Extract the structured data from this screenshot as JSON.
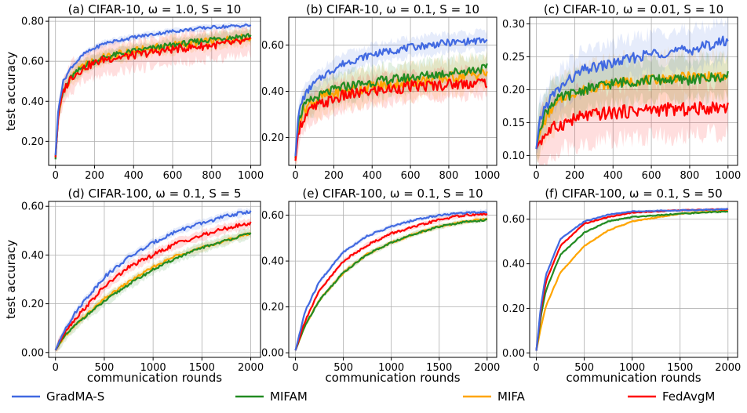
{
  "legend": [
    {
      "name": "GradMA-S",
      "color": "#4169e1"
    },
    {
      "name": "MIFAM",
      "color": "#228b22"
    },
    {
      "name": "MIFA",
      "color": "#ffa500"
    },
    {
      "name": "FedAvgM",
      "color": "#ff0000"
    }
  ],
  "chart_data": [
    {
      "type": "line",
      "title": "(a) CIFAR-10, ω = 1.0, S = 10",
      "ylabel": "test accuracy",
      "xlabel": "",
      "xlim": [
        -35,
        1050
      ],
      "ylim": [
        0.08,
        0.82
      ],
      "xticks": [
        0,
        200,
        400,
        600,
        800,
        1000
      ],
      "xtick_labels": [
        "0",
        "200",
        "400",
        "600",
        "800",
        "1000"
      ],
      "yticks": [
        0.2,
        0.4,
        0.6,
        0.8
      ],
      "ytick_labels": [
        "0.20",
        "0.40",
        "0.60",
        "0.80"
      ],
      "grid": true,
      "shaded_variance": true,
      "series": [
        {
          "name": "GradMA-S",
          "x": [
            0,
            15,
            40,
            80,
            150,
            250,
            400,
            600,
            800,
            1000
          ],
          "y": [
            0.13,
            0.37,
            0.5,
            0.57,
            0.64,
            0.69,
            0.72,
            0.75,
            0.77,
            0.78
          ],
          "band": 0.015,
          "noise": 0.008
        },
        {
          "name": "MIFAM",
          "x": [
            0,
            15,
            40,
            80,
            150,
            250,
            400,
            600,
            800,
            1000
          ],
          "y": [
            0.11,
            0.34,
            0.45,
            0.52,
            0.58,
            0.62,
            0.65,
            0.68,
            0.71,
            0.73
          ],
          "band": 0.03,
          "noise": 0.015
        },
        {
          "name": "MIFA",
          "x": [
            0,
            15,
            40,
            80,
            150,
            250,
            400,
            600,
            800,
            1000
          ],
          "y": [
            0.12,
            0.34,
            0.45,
            0.52,
            0.58,
            0.62,
            0.65,
            0.68,
            0.7,
            0.72
          ],
          "band": 0.04,
          "noise": 0.02
        },
        {
          "name": "FedAvgM",
          "x": [
            0,
            15,
            40,
            80,
            150,
            250,
            400,
            600,
            800,
            1000
          ],
          "y": [
            0.12,
            0.33,
            0.45,
            0.52,
            0.57,
            0.61,
            0.63,
            0.66,
            0.68,
            0.7
          ],
          "band": 0.07,
          "noise": 0.02
        }
      ]
    },
    {
      "type": "line",
      "title": "(b) CIFAR-10, ω = 0.1, S = 10",
      "ylabel": "",
      "xlabel": "",
      "xlim": [
        -35,
        1050
      ],
      "ylim": [
        0.08,
        0.72
      ],
      "xticks": [
        0,
        200,
        400,
        600,
        800,
        1000
      ],
      "xtick_labels": [
        "0",
        "200",
        "400",
        "600",
        "800",
        "1000"
      ],
      "yticks": [
        0.2,
        0.4,
        0.6
      ],
      "ytick_labels": [
        "0.20",
        "0.40",
        "0.60"
      ],
      "grid": true,
      "shaded_variance": true,
      "series": [
        {
          "name": "GradMA-S",
          "x": [
            0,
            15,
            40,
            80,
            150,
            250,
            400,
            600,
            800,
            1000
          ],
          "y": [
            0.12,
            0.3,
            0.37,
            0.42,
            0.47,
            0.52,
            0.56,
            0.59,
            0.61,
            0.62
          ],
          "band": 0.04,
          "noise": 0.015
        },
        {
          "name": "MIFAM",
          "x": [
            0,
            15,
            40,
            80,
            150,
            250,
            400,
            600,
            800,
            1000
          ],
          "y": [
            0.11,
            0.27,
            0.33,
            0.36,
            0.39,
            0.42,
            0.44,
            0.46,
            0.48,
            0.5
          ],
          "band": 0.06,
          "noise": 0.02
        },
        {
          "name": "MIFA",
          "x": [
            0,
            15,
            40,
            80,
            150,
            250,
            400,
            600,
            800,
            1000
          ],
          "y": [
            0.11,
            0.26,
            0.32,
            0.35,
            0.38,
            0.4,
            0.42,
            0.44,
            0.46,
            0.48
          ],
          "band": 0.07,
          "noise": 0.025
        },
        {
          "name": "FedAvgM",
          "x": [
            0,
            15,
            40,
            80,
            150,
            250,
            400,
            600,
            800,
            1000
          ],
          "y": [
            0.1,
            0.23,
            0.28,
            0.32,
            0.35,
            0.38,
            0.4,
            0.42,
            0.43,
            0.44
          ],
          "band": 0.06,
          "noise": 0.025
        }
      ]
    },
    {
      "type": "line",
      "title": "(c) CIFAR-10, ω = 0.01, S = 10",
      "ylabel": "",
      "xlabel": "",
      "xlim": [
        -35,
        1050
      ],
      "ylim": [
        0.085,
        0.31
      ],
      "xticks": [
        0,
        200,
        400,
        600,
        800,
        1000
      ],
      "xtick_labels": [
        "0",
        "200",
        "400",
        "600",
        "800",
        "1000"
      ],
      "yticks": [
        0.1,
        0.15,
        0.2,
        0.25,
        0.3
      ],
      "ytick_labels": [
        "0.10",
        "0.15",
        "0.20",
        "0.25",
        "0.30"
      ],
      "grid": true,
      "shaded_variance": true,
      "series": [
        {
          "name": "GradMA-S",
          "x": [
            0,
            15,
            40,
            80,
            150,
            250,
            400,
            600,
            800,
            1000
          ],
          "y": [
            0.11,
            0.15,
            0.17,
            0.19,
            0.21,
            0.23,
            0.24,
            0.255,
            0.26,
            0.275
          ],
          "band": 0.03,
          "noise": 0.008
        },
        {
          "name": "MIFAM",
          "x": [
            0,
            15,
            40,
            80,
            150,
            250,
            400,
            600,
            800,
            1000
          ],
          "y": [
            0.11,
            0.14,
            0.16,
            0.18,
            0.19,
            0.2,
            0.21,
            0.215,
            0.215,
            0.22
          ],
          "band": 0.03,
          "noise": 0.008
        },
        {
          "name": "MIFA",
          "x": [
            0,
            15,
            40,
            80,
            150,
            250,
            400,
            600,
            800,
            1000
          ],
          "y": [
            0.11,
            0.13,
            0.15,
            0.17,
            0.19,
            0.2,
            0.21,
            0.215,
            0.22,
            0.22
          ],
          "band": 0.035,
          "noise": 0.007
        },
        {
          "name": "FedAvgM",
          "x": [
            0,
            15,
            40,
            80,
            150,
            250,
            400,
            600,
            800,
            1000
          ],
          "y": [
            0.11,
            0.12,
            0.13,
            0.14,
            0.15,
            0.16,
            0.165,
            0.17,
            0.17,
            0.175
          ],
          "band": 0.04,
          "noise": 0.01
        }
      ]
    },
    {
      "type": "line",
      "title": "(d) CIFAR-100, ω = 0.1, S = 5",
      "ylabel": "test accuracy",
      "xlabel": "communication rounds",
      "xlim": [
        -70,
        2100
      ],
      "ylim": [
        -0.02,
        0.62
      ],
      "xticks": [
        0,
        500,
        1000,
        1500,
        2000
      ],
      "xtick_labels": [
        "0",
        "500",
        "1000",
        "1500",
        "2000"
      ],
      "yticks": [
        0.0,
        0.2,
        0.4,
        0.6
      ],
      "ytick_labels": [
        "0.00",
        "0.20",
        "0.40",
        "0.60"
      ],
      "grid": true,
      "shaded_variance": true,
      "series": [
        {
          "name": "GradMA-S",
          "x": [
            0,
            100,
            250,
            500,
            750,
            1000,
            1250,
            1500,
            1750,
            2000
          ],
          "y": [
            0.01,
            0.1,
            0.19,
            0.31,
            0.39,
            0.45,
            0.5,
            0.53,
            0.56,
            0.58
          ],
          "band": 0.015,
          "noise": 0.007
        },
        {
          "name": "MIFAM",
          "x": [
            0,
            100,
            250,
            500,
            750,
            1000,
            1250,
            1500,
            1750,
            2000
          ],
          "y": [
            0.01,
            0.07,
            0.13,
            0.21,
            0.28,
            0.34,
            0.39,
            0.43,
            0.46,
            0.49
          ],
          "band": 0.02,
          "noise": 0.005
        },
        {
          "name": "MIFA",
          "x": [
            0,
            100,
            250,
            500,
            750,
            1000,
            1250,
            1500,
            1750,
            2000
          ],
          "y": [
            0.01,
            0.07,
            0.13,
            0.22,
            0.29,
            0.35,
            0.4,
            0.43,
            0.46,
            0.49
          ],
          "band": 0.015,
          "noise": 0.005
        },
        {
          "name": "FedAvgM",
          "x": [
            0,
            100,
            250,
            500,
            750,
            1000,
            1250,
            1500,
            1750,
            2000
          ],
          "y": [
            0.01,
            0.09,
            0.16,
            0.27,
            0.35,
            0.4,
            0.45,
            0.48,
            0.51,
            0.53
          ],
          "band": 0.02,
          "noise": 0.008
        }
      ]
    },
    {
      "type": "line",
      "title": "(e) CIFAR-100, ω = 0.1, S = 10",
      "ylabel": "",
      "xlabel": "communication rounds",
      "xlim": [
        -70,
        2100
      ],
      "ylim": [
        -0.02,
        0.66
      ],
      "xticks": [
        0,
        500,
        1000,
        1500,
        2000
      ],
      "xtick_labels": [
        "0",
        "500",
        "1000",
        "1500",
        "2000"
      ],
      "yticks": [
        0.0,
        0.2,
        0.4,
        0.6
      ],
      "ytick_labels": [
        "0.00",
        "0.20",
        "0.40",
        "0.60"
      ],
      "grid": true,
      "shaded_variance": true,
      "series": [
        {
          "name": "GradMA-S",
          "x": [
            0,
            100,
            250,
            500,
            750,
            1000,
            1250,
            1500,
            1750,
            2000
          ],
          "y": [
            0.01,
            0.18,
            0.31,
            0.44,
            0.51,
            0.55,
            0.58,
            0.6,
            0.61,
            0.615
          ],
          "band": 0.01,
          "noise": 0.004
        },
        {
          "name": "MIFAM",
          "x": [
            0,
            100,
            250,
            500,
            750,
            1000,
            1250,
            1500,
            1750,
            2000
          ],
          "y": [
            0.01,
            0.12,
            0.23,
            0.35,
            0.43,
            0.48,
            0.52,
            0.55,
            0.57,
            0.58
          ],
          "band": 0.01,
          "noise": 0.004
        },
        {
          "name": "MIFA",
          "x": [
            0,
            100,
            250,
            500,
            750,
            1000,
            1250,
            1500,
            1750,
            2000
          ],
          "y": [
            0.01,
            0.12,
            0.23,
            0.35,
            0.43,
            0.48,
            0.52,
            0.55,
            0.57,
            0.585
          ],
          "band": 0.01,
          "noise": 0.004
        },
        {
          "name": "FedAvgM",
          "x": [
            0,
            100,
            250,
            500,
            750,
            1000,
            1250,
            1500,
            1750,
            2000
          ],
          "y": [
            0.01,
            0.14,
            0.27,
            0.4,
            0.47,
            0.52,
            0.55,
            0.58,
            0.6,
            0.605
          ],
          "band": 0.01,
          "noise": 0.005
        }
      ]
    },
    {
      "type": "line",
      "title": "(f) CIFAR-100, ω = 0.1, S = 50",
      "ylabel": "",
      "xlabel": "communication rounds",
      "xlim": [
        -70,
        2100
      ],
      "ylim": [
        -0.02,
        0.68
      ],
      "xticks": [
        0,
        500,
        1000,
        1500,
        2000
      ],
      "xtick_labels": [
        "0",
        "500",
        "1000",
        "1500",
        "2000"
      ],
      "yticks": [
        0.0,
        0.2,
        0.4,
        0.6
      ],
      "ytick_labels": [
        "0.00",
        "0.20",
        "0.40",
        "0.60"
      ],
      "grid": true,
      "shaded_variance": true,
      "series": [
        {
          "name": "GradMA-S",
          "x": [
            0,
            50,
            100,
            250,
            500,
            750,
            1000,
            1500,
            2000
          ],
          "y": [
            0.01,
            0.22,
            0.35,
            0.51,
            0.59,
            0.62,
            0.635,
            0.64,
            0.645
          ],
          "band": 0.006,
          "noise": 0.002
        },
        {
          "name": "MIFAM",
          "x": [
            0,
            50,
            100,
            250,
            500,
            750,
            1000,
            1500,
            2000
          ],
          "y": [
            0.01,
            0.17,
            0.28,
            0.44,
            0.54,
            0.59,
            0.61,
            0.625,
            0.635
          ],
          "band": 0.006,
          "noise": 0.002
        },
        {
          "name": "MIFA",
          "x": [
            0,
            50,
            100,
            250,
            500,
            750,
            1000,
            1500,
            2000
          ],
          "y": [
            0.01,
            0.12,
            0.21,
            0.36,
            0.48,
            0.55,
            0.59,
            0.625,
            0.64
          ],
          "band": 0.006,
          "noise": 0.002
        },
        {
          "name": "FedAvgM",
          "x": [
            0,
            50,
            100,
            250,
            500,
            750,
            1000,
            1500,
            2000
          ],
          "y": [
            0.01,
            0.2,
            0.32,
            0.48,
            0.58,
            0.61,
            0.63,
            0.64,
            0.645
          ],
          "band": 0.006,
          "noise": 0.002
        }
      ]
    }
  ]
}
